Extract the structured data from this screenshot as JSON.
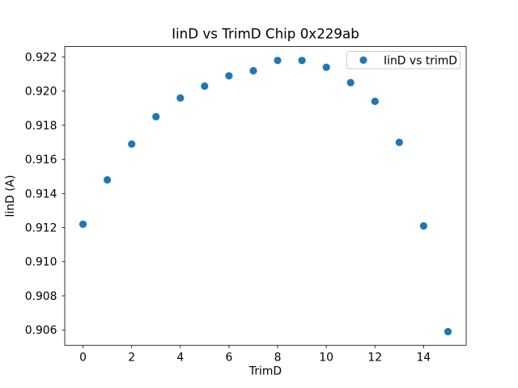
{
  "figure": {
    "background_color": "#ffffff",
    "text_color": "#000000",
    "spine_color": "#000000",
    "legend_border_color": "#cccccc"
  },
  "chart_data": {
    "type": "scatter",
    "title": "IinD vs TrimD Chip 0x229ab",
    "xlabel": "TrimD",
    "ylabel": "IinD (A)",
    "legend_label": "IinD vs trimD",
    "legend_position": "upper right",
    "marker_color": "#1f77b4",
    "marker_shape": "circle",
    "grid": false,
    "x": [
      0,
      1,
      2,
      3,
      4,
      5,
      6,
      7,
      8,
      9,
      10,
      11,
      12,
      13,
      14,
      15
    ],
    "y": [
      0.9122,
      0.9148,
      0.9169,
      0.9185,
      0.9196,
      0.9203,
      0.9209,
      0.9212,
      0.9218,
      0.9218,
      0.9214,
      0.9205,
      0.9194,
      0.917,
      0.9121,
      0.9059
    ],
    "xlim": [
      -0.75,
      15.75
    ],
    "ylim": [
      0.9051,
      0.92262
    ],
    "xticks": [
      0,
      2,
      4,
      6,
      8,
      10,
      12,
      14
    ],
    "yticks": [
      0.906,
      0.908,
      0.91,
      0.912,
      0.914,
      0.916,
      0.918,
      0.92,
      0.922
    ],
    "ytick_decimals": 3
  }
}
